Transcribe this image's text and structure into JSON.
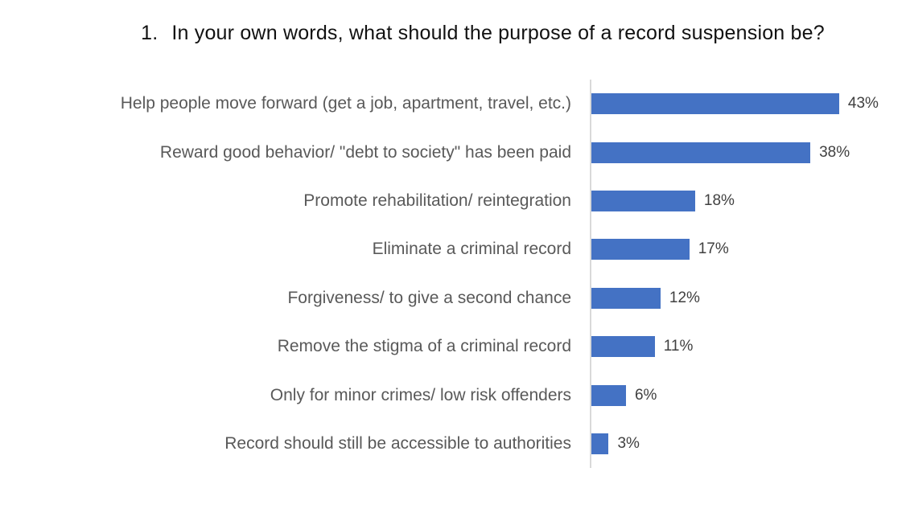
{
  "title": {
    "number": "1.",
    "text": "In your own words, what should the purpose of a record suspension be?"
  },
  "chart_data": {
    "type": "bar",
    "orientation": "horizontal",
    "title": "1. In your own words, what should the purpose of a record suspension be?",
    "categories": [
      "Help people move forward (get a job, apartment, travel, etc.)",
      "Reward good behavior/ \"debt to society\" has been paid",
      "Promote rehabilitation/ reintegration",
      "Eliminate a criminal record",
      "Forgiveness/ to give a second chance",
      "Remove the stigma of a criminal record",
      "Only for minor crimes/ low risk offenders",
      "Record should still be accessible to authorities"
    ],
    "values": [
      43,
      38,
      18,
      17,
      12,
      11,
      6,
      3
    ],
    "value_labels": [
      "43%",
      "38%",
      "18%",
      "17%",
      "12%",
      "11%",
      "6%",
      "3%"
    ],
    "xlabel": "",
    "ylabel": "",
    "xlim": [
      0,
      45
    ],
    "grid": false,
    "legend": false,
    "bar_color": "#4472C4",
    "category_label_color": "#595959",
    "value_label_color": "#404040",
    "axis_line_color": "#D9D9D9",
    "background_color": "#FFFFFF"
  }
}
